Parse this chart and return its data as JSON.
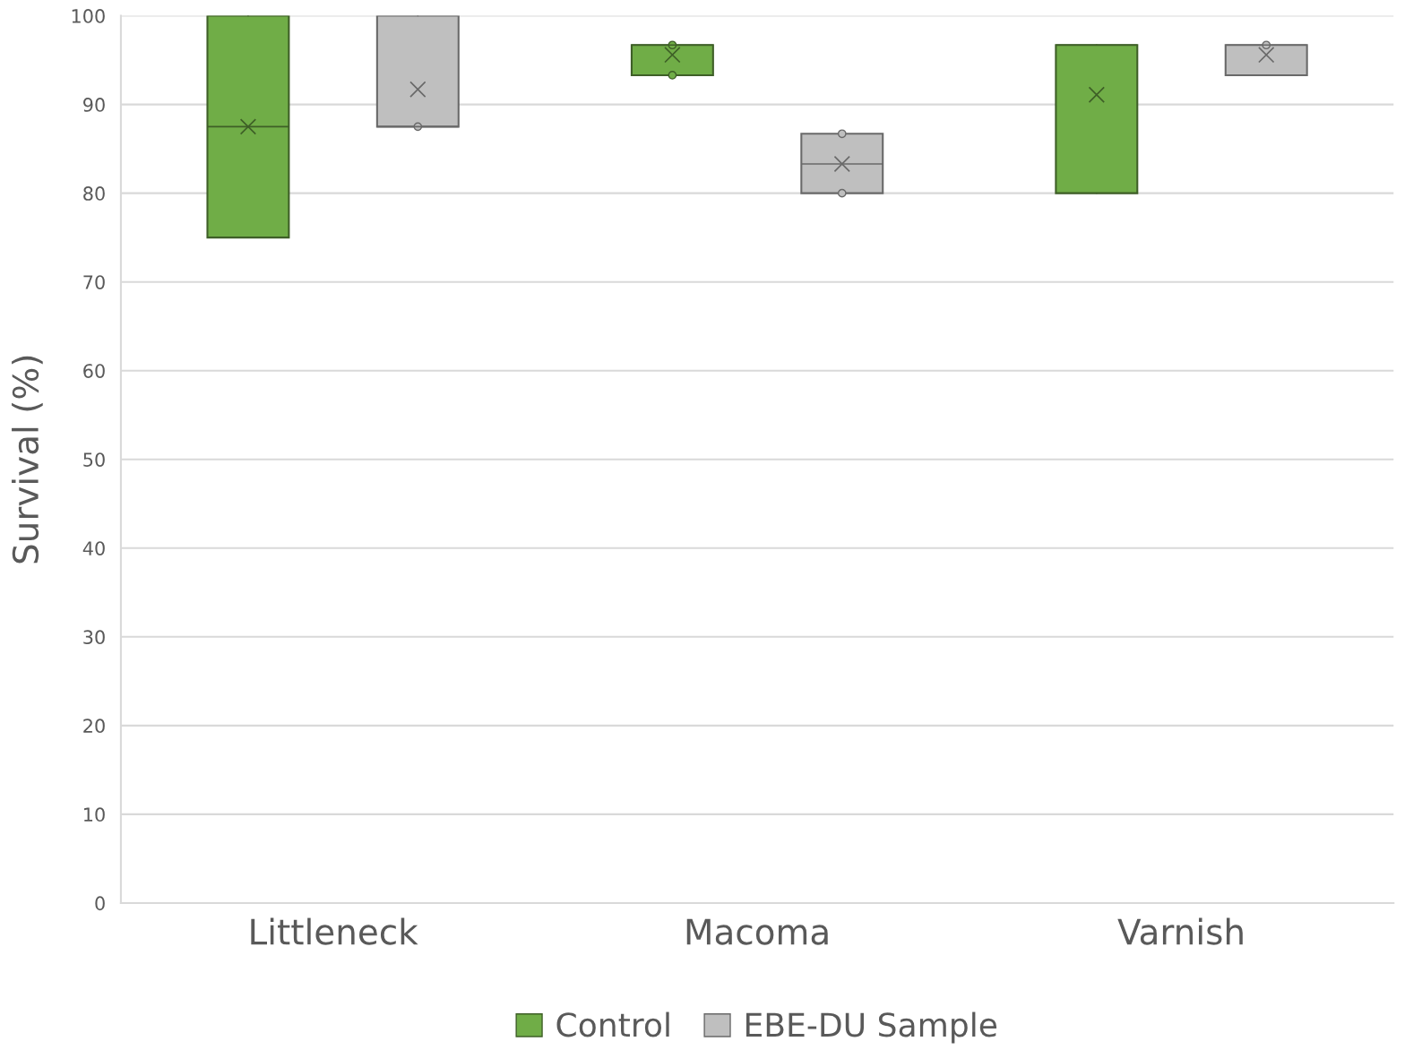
{
  "chart_data": {
    "type": "box",
    "ylabel": "Survival (%)",
    "categories": [
      "Littleneck",
      "Macoma",
      "Varnish"
    ],
    "ylim": [
      0,
      100
    ],
    "yticks": [
      0,
      10,
      20,
      30,
      40,
      50,
      60,
      70,
      80,
      90,
      100
    ],
    "grid": "y",
    "legend": "bottom",
    "series": [
      {
        "name": "Control",
        "color": "#70ad47",
        "boxes": [
          {
            "low": 75,
            "q1": 75,
            "median": 87.5,
            "q3": 100,
            "high": 100,
            "mean": 87.5
          },
          {
            "low": 93.3,
            "q1": 93.3,
            "median": 96.7,
            "q3": 96.7,
            "high": 96.7,
            "mean": 95.6,
            "outliers": [
              93.3,
              96.7
            ]
          },
          {
            "low": 80,
            "q1": 80,
            "median": 96.7,
            "q3": 96.7,
            "high": 96.7,
            "mean": 91.1
          }
        ]
      },
      {
        "name": "EBE-DU Sample",
        "color": "#bfbfbf",
        "boxes": [
          {
            "low": 87.5,
            "q1": 87.5,
            "median": 87.5,
            "q3": 100,
            "high": 100,
            "mean": 91.7,
            "outliers": [
              87.5
            ]
          },
          {
            "low": 80,
            "q1": 80,
            "median": 83.3,
            "q3": 86.7,
            "high": 86.7,
            "mean": 83.3,
            "outliers": [
              80,
              86.7
            ]
          },
          {
            "low": 93.3,
            "q1": 93.3,
            "median": 96.7,
            "q3": 96.7,
            "high": 96.7,
            "mean": 95.6,
            "outliers": [
              96.7
            ]
          }
        ]
      }
    ]
  }
}
